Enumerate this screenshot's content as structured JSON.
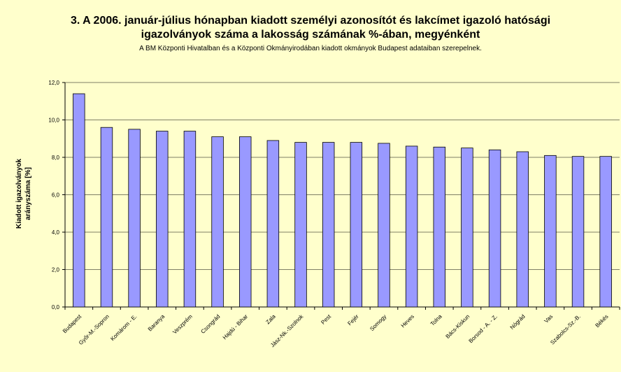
{
  "chart_data": {
    "type": "bar",
    "title_lines": [
      "3. A 2006. január-július hónapban kiadott személyi azonosítót és lakcímet igazoló hatósági",
      "igazolványok száma a lakosság  számának %-ában, megyénként"
    ],
    "subtitle": "A BM Központi Hivatalban és a Központi Okmányirodában kiadott okmányok Budapest adataiban szerepelnek.",
    "ylabel_lines": [
      "Kiadott igazolványok",
      "arányszáma [%]"
    ],
    "xlabel": "",
    "ylim": [
      0,
      12
    ],
    "yticks": [
      "0,0",
      "2,0",
      "4,0",
      "6,0",
      "8,0",
      "10,0",
      "12,0"
    ],
    "grid": true,
    "legend": "none",
    "categories": [
      "Budapest",
      "Győr-M.-Sopron",
      "Komárom - E.",
      "Baranya",
      "Veszprém",
      "Csongrád",
      "Hajdú - Bihar",
      "Zala",
      "Jász-Nk.-Szolnok",
      "Pest",
      "Fejér",
      "Somogy",
      "Heves",
      "Tolna",
      "Bács-Kiskun",
      "Borsod - A. - Z.",
      "Nógrád",
      "Vas",
      "Szabolcs-Sz.-B.",
      "Békés"
    ],
    "values": [
      11.4,
      9.6,
      9.5,
      9.4,
      9.4,
      9.1,
      9.1,
      8.9,
      8.8,
      8.8,
      8.8,
      8.75,
      8.6,
      8.55,
      8.5,
      8.4,
      8.3,
      8.1,
      8.05,
      8.05
    ],
    "colors": {
      "background": "#FFFFCC",
      "bar_fill": "#9999FF",
      "bar_stroke": "#000000",
      "grid": "#000000"
    }
  }
}
